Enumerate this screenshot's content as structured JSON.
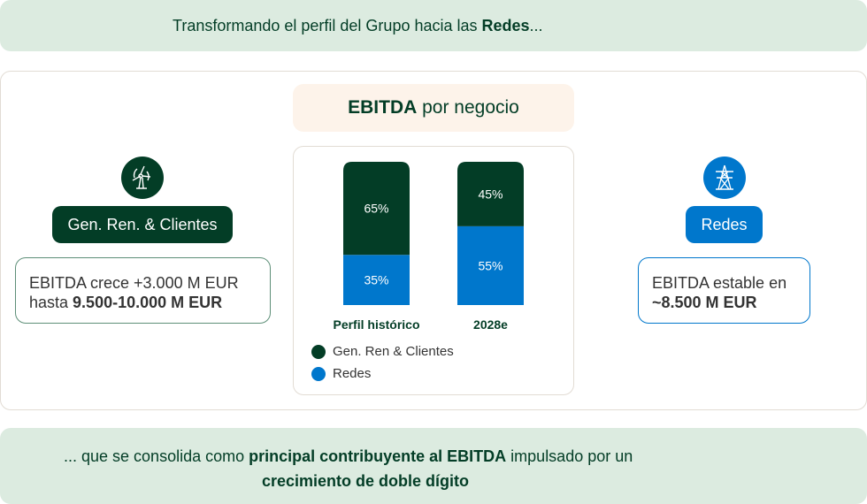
{
  "header": {
    "text": "Transformando el perfil del Grupo hacia las ",
    "bold": "Redes",
    "suffix": "..."
  },
  "chart_title": {
    "bold": "EBITDA",
    "rest": " por negocio"
  },
  "left": {
    "icon": "wind-turbine-icon",
    "label": "Gen. Ren. & Clientes",
    "line1": "EBITDA crece +3.000 M EUR",
    "line2_prefix": "hasta ",
    "line2_bold": "9.500-10.000 M EUR"
  },
  "right": {
    "icon": "power-tower-icon",
    "label": "Redes",
    "line1": "EBITDA estable en",
    "line2_bold": "~8.500 M EUR"
  },
  "footer": {
    "p1": "... que se consolida como ",
    "b1": "principal contribuyente al EBITDA",
    "p2": " impulsado por un",
    "b2": "crecimiento de doble dígito"
  },
  "colors": {
    "dark_green": "#033d26",
    "blue": "#0077cc",
    "light_green": "#dcebe0",
    "peach": "#fdf3ea"
  },
  "chart_data": {
    "type": "bar",
    "stacked": true,
    "unit": "%",
    "categories": [
      "Perfil histórico",
      "2028e"
    ],
    "series": [
      {
        "name": "Redes",
        "color": "#0077cc",
        "values": [
          35,
          55
        ],
        "labels": [
          "35%",
          "55%"
        ]
      },
      {
        "name": "Gen. Ren & Clientes",
        "color": "#033d26",
        "values": [
          65,
          45
        ],
        "labels": [
          "65%",
          "45%"
        ]
      }
    ],
    "ylim": [
      0,
      100
    ],
    "grid": false,
    "legend": "bottom-left"
  }
}
